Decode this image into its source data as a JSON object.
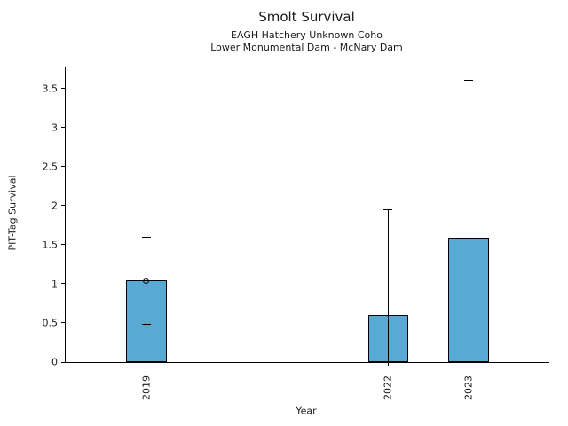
{
  "chart_data": {
    "type": "bar",
    "title": "Smolt Survival",
    "subtitle_line1": "EAGH Hatchery Unknown Coho",
    "subtitle_line2": "Lower Monumental Dam - McNary Dam",
    "xlabel": "Year",
    "ylabel": "PIT-Tag Survival",
    "categories": [
      "2019",
      "2022",
      "2023"
    ],
    "x": [
      2019,
      2022,
      2023
    ],
    "values": [
      1.04,
      0.6,
      1.59
    ],
    "error_low": [
      0.48,
      0.0,
      0.0
    ],
    "error_high": [
      1.6,
      1.95,
      3.6
    ],
    "marker_points": [
      {
        "x": 2019,
        "y": 1.04,
        "marker": "open-circle"
      }
    ],
    "bar_width_years": 0.5,
    "xlim": [
      2018,
      2024
    ],
    "ylim": [
      0,
      3.78
    ],
    "yticks": [
      0,
      0.5,
      1,
      1.5,
      2,
      2.5,
      3,
      3.5
    ],
    "ytick_labels": [
      "0",
      "0.5",
      "1",
      "1.5",
      "2",
      "2.5",
      "3",
      "3.5"
    ],
    "grid": false,
    "legend": null,
    "colors": {
      "bar_fill": "#58A9D3",
      "bar_edge": "#000000",
      "error_bar": "#000000",
      "text": "#1a1a1a",
      "background": "#ffffff"
    }
  }
}
